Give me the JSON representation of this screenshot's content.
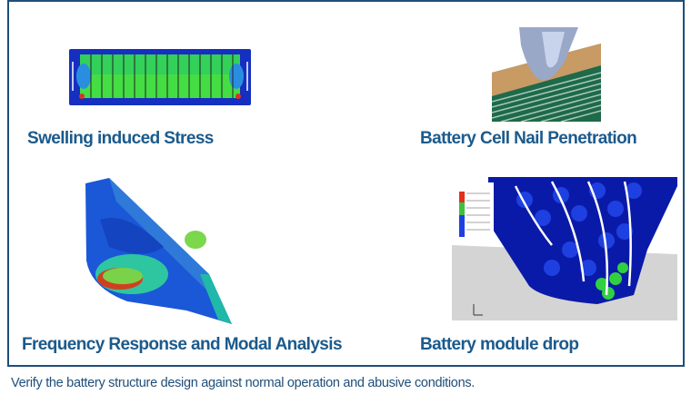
{
  "panels": [
    {
      "label": "Swelling induced Stress",
      "image": "battery-pack-swelling-stress-contour"
    },
    {
      "label": "Battery Cell Nail Penetration",
      "image": "nail-penetrating-cell-layers"
    },
    {
      "label": "Frequency Response and Modal Analysis",
      "image": "battery-enclosure-modal-contour"
    },
    {
      "label": "Battery module drop",
      "image": "module-drop-impact-contour"
    }
  ],
  "caption": "Verify the battery structure design against normal operation and abusive conditions.",
  "colors": {
    "frame": "#1f4e79",
    "label": "#1b5a8c",
    "contour_low": "#1030c8",
    "contour_mid": "#22cc44",
    "contour_high": "#e02020"
  }
}
